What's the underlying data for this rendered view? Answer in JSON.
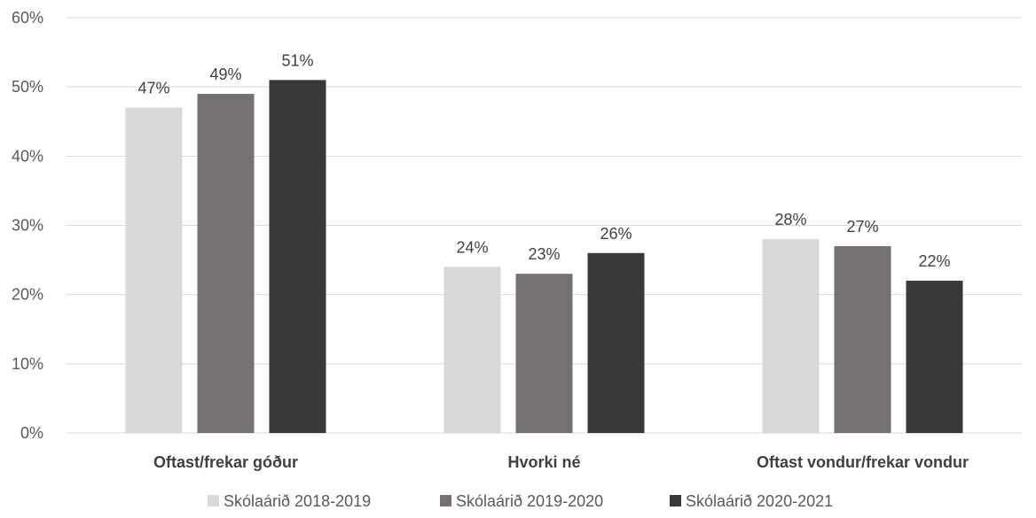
{
  "chart_data": {
    "type": "bar",
    "categories": [
      "Oftast/frekar góður",
      "Hvorki né",
      "Oftast vondur/frekar vondur"
    ],
    "series": [
      {
        "name": "Skólaárið 2018-2019",
        "values": [
          47,
          24,
          28
        ],
        "color": "#d9d9d9"
      },
      {
        "name": "Skólaárið 2019-2020",
        "values": [
          49,
          23,
          27
        ],
        "color": "#767171"
      },
      {
        "name": "Skólaárið 2020-2021",
        "values": [
          51,
          26,
          22
        ],
        "color": "#3a3838"
      }
    ],
    "value_suffix": "%",
    "ylim": [
      0,
      60
    ],
    "yticks": [
      0,
      10,
      20,
      30,
      40,
      50,
      60
    ],
    "ytick_labels": [
      "0%",
      "10%",
      "20%",
      "30%",
      "40%",
      "50%",
      "60%"
    ],
    "grid": true,
    "legend_position": "bottom"
  }
}
